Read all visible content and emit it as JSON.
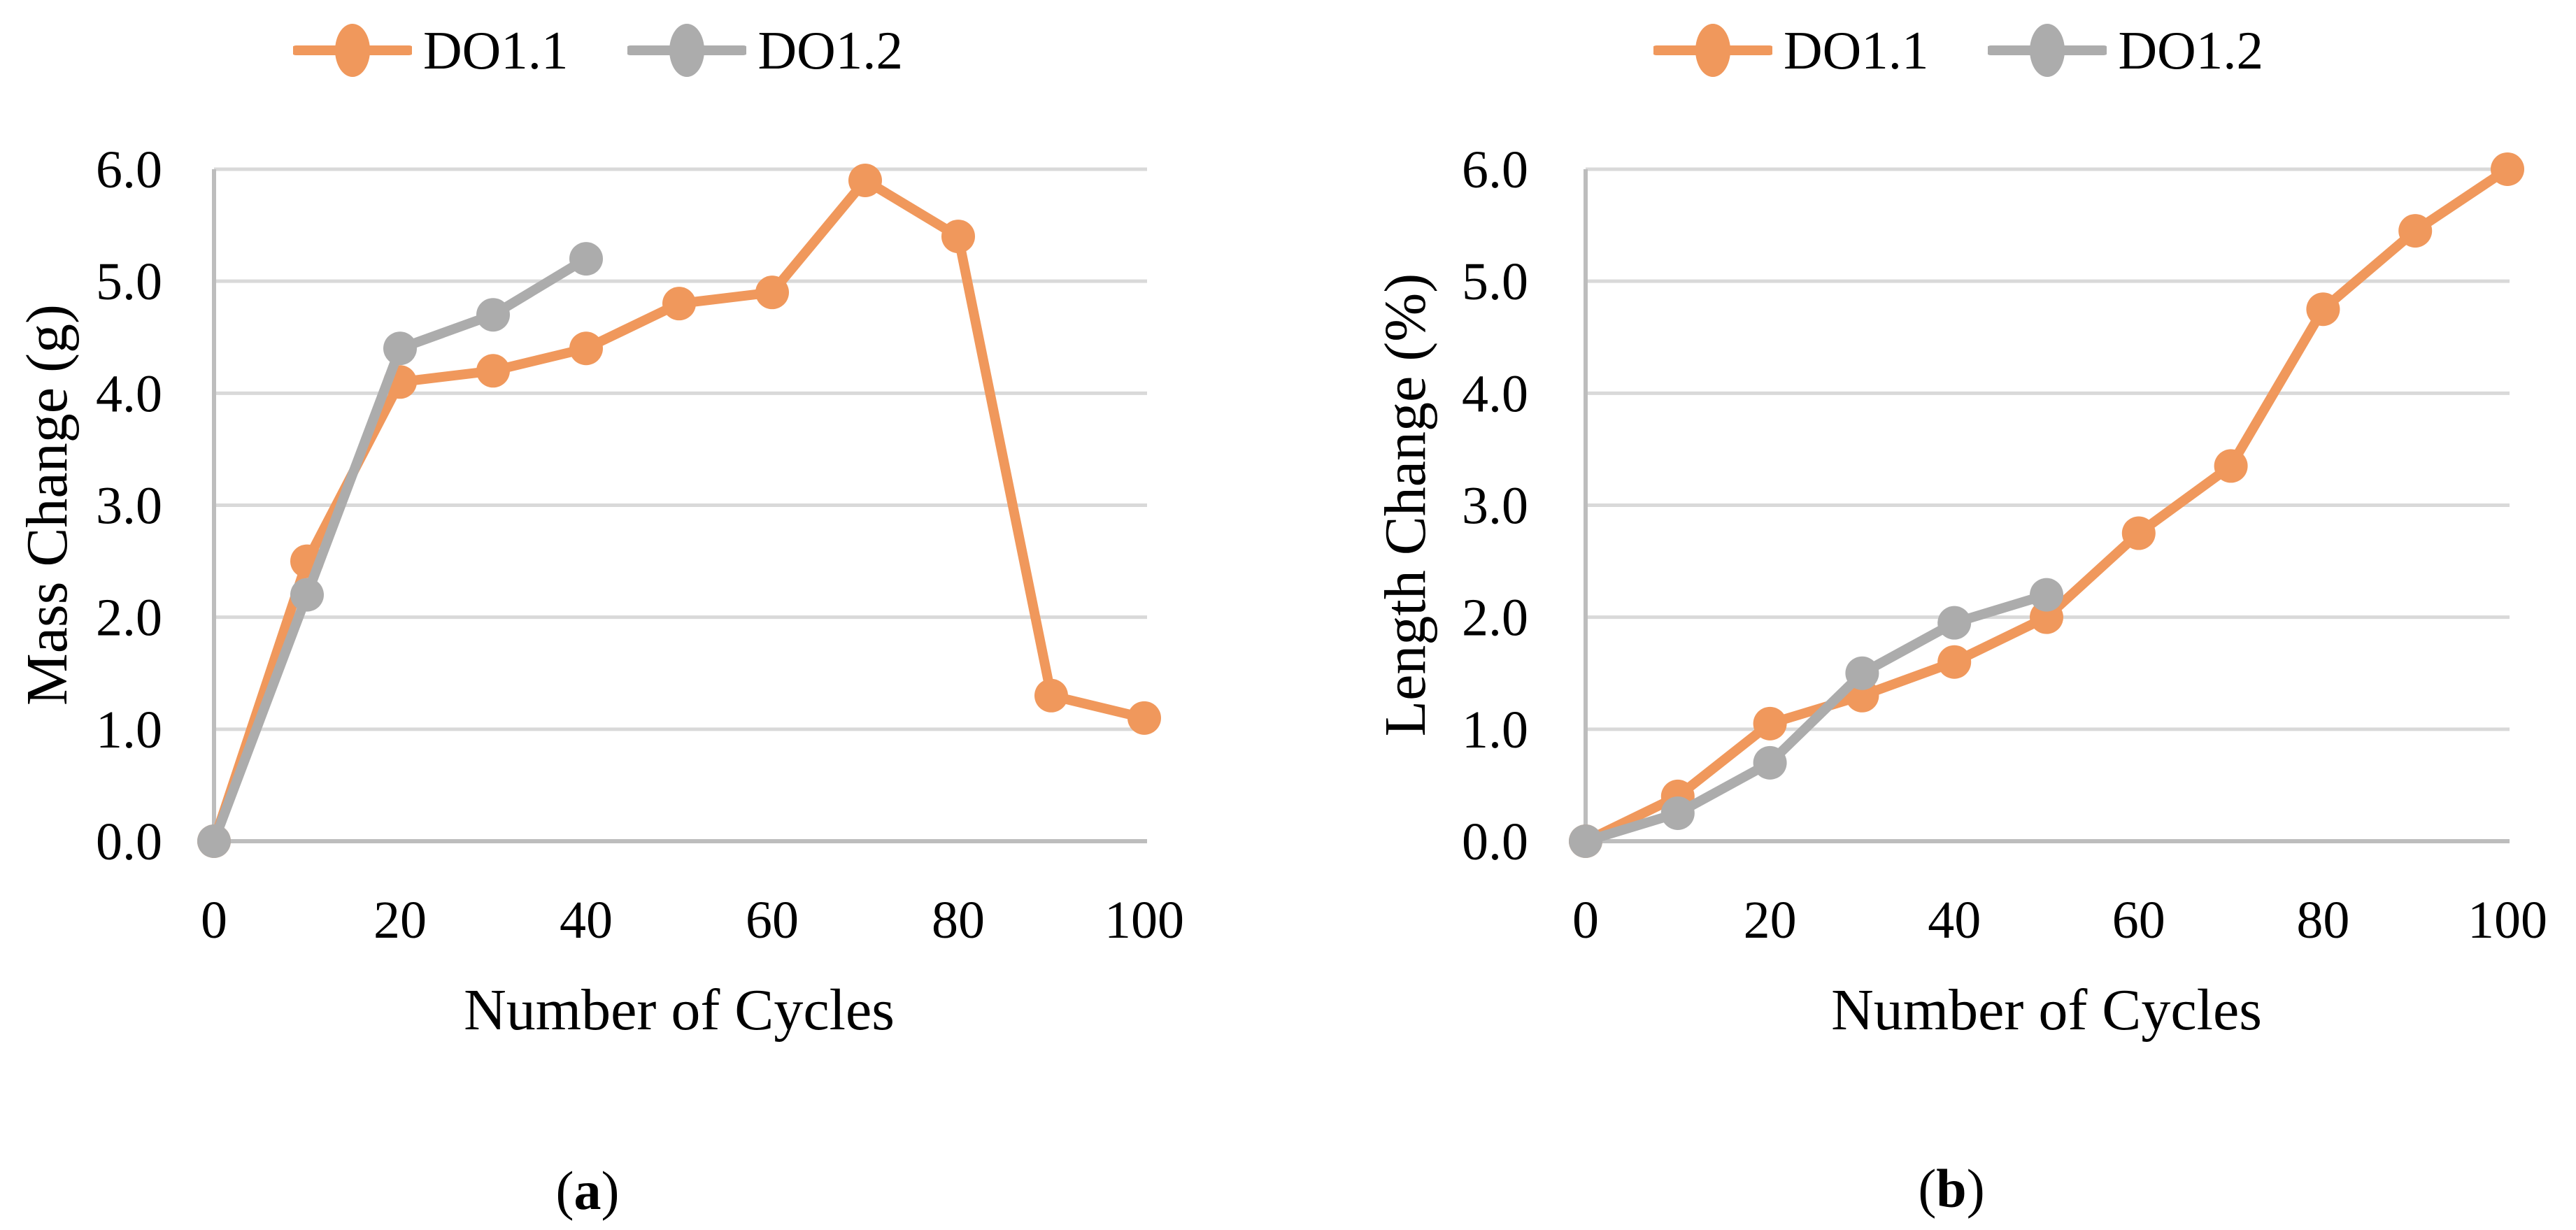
{
  "colors": {
    "series_orange": "#F0985C",
    "series_gray": "#ACACAC",
    "gridline": "#D9D9D9",
    "axis_line": "#BDBDBD",
    "text": "#000000"
  },
  "chart_data": {
    "charts": [
      {
        "type": "line",
        "panel": "a",
        "title": "",
        "xlabel": "Number of Cycles",
        "ylabel": "Mass Change (g)",
        "caption": {
          "open": "(",
          "letter": "a",
          "close": ")"
        },
        "xlim": [
          0,
          100
        ],
        "ylim": [
          0,
          6
        ],
        "x_tick_labels": [
          "0",
          "20",
          "40",
          "60",
          "80",
          "100"
        ],
        "y_tick_labels": [
          "0.0",
          "1.0",
          "2.0",
          "3.0",
          "4.0",
          "5.0",
          "6.0"
        ],
        "grid": "horizontal",
        "legend_position": "top-center",
        "series": [
          {
            "name": "DO1.1",
            "color": "#F0985C",
            "x": [
              0,
              10,
              20,
              30,
              40,
              50,
              60,
              70,
              80,
              90,
              100
            ],
            "y": [
              0.0,
              2.5,
              4.1,
              4.2,
              4.4,
              4.8,
              4.9,
              5.9,
              5.4,
              1.3,
              1.1
            ]
          },
          {
            "name": "DO1.2",
            "color": "#ACACAC",
            "x": [
              0,
              10,
              20,
              30,
              40
            ],
            "y": [
              0.0,
              2.2,
              4.4,
              4.7,
              5.2
            ]
          }
        ]
      },
      {
        "type": "line",
        "panel": "b",
        "title": "",
        "xlabel": "Number of Cycles",
        "ylabel": "Length Change (%)",
        "caption": {
          "open": "(",
          "letter": "b",
          "close": ")"
        },
        "xlim": [
          0,
          100
        ],
        "ylim": [
          0,
          6
        ],
        "x_tick_labels": [
          "0",
          "20",
          "40",
          "60",
          "80",
          "100"
        ],
        "y_tick_labels": [
          "0.0",
          "1.0",
          "2.0",
          "3.0",
          "4.0",
          "5.0",
          "6.0"
        ],
        "grid": "horizontal",
        "legend_position": "top-center",
        "series": [
          {
            "name": "DO1.1",
            "color": "#F0985C",
            "x": [
              0,
              10,
              20,
              30,
              40,
              50,
              60,
              70,
              80,
              90,
              100
            ],
            "y": [
              0.0,
              0.4,
              1.05,
              1.3,
              1.6,
              2.0,
              2.75,
              3.35,
              4.75,
              5.45,
              6.0
            ]
          },
          {
            "name": "DO1.2",
            "color": "#ACACAC",
            "x": [
              0,
              10,
              20,
              30,
              40,
              50
            ],
            "y": [
              0.0,
              0.25,
              0.7,
              1.5,
              1.95,
              2.2
            ]
          }
        ]
      }
    ]
  }
}
